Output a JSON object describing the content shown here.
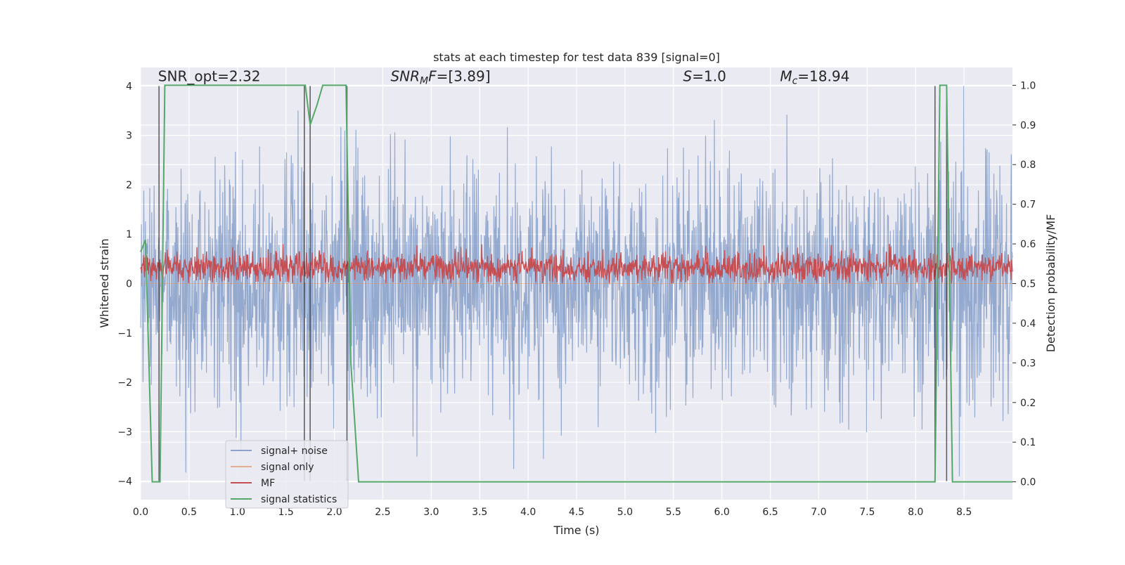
{
  "chart_data": {
    "type": "line",
    "title": "stats at each timestep for test data 839 [signal=0]",
    "xlabel": "Time (s)",
    "ylabel_left": "Whitened strain",
    "ylabel_right": "Detection probability/MF",
    "xlim": [
      0.0,
      9.0
    ],
    "ylim_left": [
      -4.375,
      4.375
    ],
    "ylim_right": [
      -0.045,
      1.045
    ],
    "x_ticks": [
      "0.0",
      "0.5",
      "1.0",
      "1.5",
      "2.0",
      "2.5",
      "3.0",
      "3.5",
      "4.0",
      "4.5",
      "5.0",
      "5.5",
      "6.0",
      "6.5",
      "7.0",
      "7.5",
      "8.0",
      "8.5"
    ],
    "y_left_ticks": [
      "−4",
      "−3",
      "−2",
      "−1",
      "0",
      "1",
      "2",
      "3",
      "4"
    ],
    "y_right_ticks": [
      "0.0",
      "0.1",
      "0.2",
      "0.3",
      "0.4",
      "0.5",
      "0.6",
      "0.7",
      "0.8",
      "0.9",
      "1.0"
    ],
    "grid": true,
    "legend_position": "lower-left",
    "annotations": [
      {
        "label": "SNR_opt=2.32",
        "x": 0.18
      },
      {
        "label": "SNR_MF=[3.89]",
        "x": 2.58
      },
      {
        "label": "S=1.0",
        "x": 5.6
      },
      {
        "label": "M_c=18.94",
        "x": 6.6
      }
    ],
    "series": [
      {
        "name": "signal+ noise",
        "color": "#4c72b0",
        "opacity": 0.55,
        "axis": "left",
        "description_values": {
          "typical_range": [
            -2.3,
            2.3
          ],
          "extremes": [
            -3.9,
            4.0
          ]
        }
      },
      {
        "name": "signal only",
        "color": "#dd8452",
        "opacity": 0.55,
        "axis": "left",
        "values": "flat at 0"
      },
      {
        "name": "MF",
        "color": "#c44e52",
        "axis": "right",
        "description_values": {
          "typical_range": [
            0.5,
            0.58
          ],
          "extremes": [
            0.5,
            0.6
          ]
        }
      },
      {
        "name": "signal statistics",
        "color": "#55a868",
        "axis": "right",
        "x": [
          0.0,
          0.05,
          0.12,
          0.2,
          0.25,
          0.3,
          1.7,
          1.75,
          1.82,
          1.88,
          2.12,
          2.17,
          2.25,
          8.2,
          8.25,
          8.32,
          8.38,
          9.0
        ],
        "y": [
          0.58,
          0.61,
          0.0,
          0.0,
          1.0,
          1.0,
          1.0,
          0.9,
          0.95,
          1.0,
          1.0,
          0.3,
          0.0,
          0.0,
          1.0,
          1.0,
          0.0,
          0.0
        ]
      }
    ],
    "detection_markers_x": [
      0.19,
      1.69,
      1.75,
      2.13,
      8.2,
      8.32
    ],
    "legend": {
      "signal_noise": "signal+ noise",
      "signal_only": "signal only",
      "mf": "MF",
      "signal_stats": "signal statistics"
    }
  }
}
